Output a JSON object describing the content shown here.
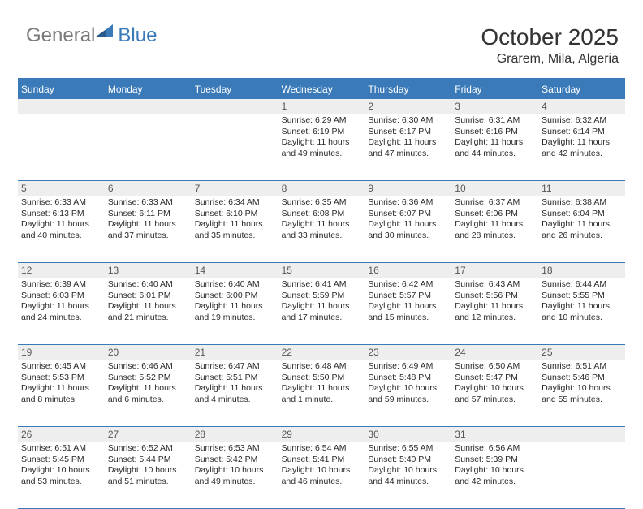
{
  "brand": {
    "part1": "General",
    "part2": "Blue"
  },
  "title": "October 2025",
  "location": "Grarem, Mila, Algeria",
  "colors": {
    "accent": "#3a7ab8",
    "header_text": "#ffffff",
    "daynum_bg": "#eeeeee",
    "body_text": "#282828",
    "logo_gray": "#7a7a7a"
  },
  "day_names": [
    "Sunday",
    "Monday",
    "Tuesday",
    "Wednesday",
    "Thursday",
    "Friday",
    "Saturday"
  ],
  "weeks": [
    [
      null,
      null,
      null,
      {
        "n": "1",
        "sr": "6:29 AM",
        "ss": "6:19 PM",
        "dh": "11",
        "dm": "49"
      },
      {
        "n": "2",
        "sr": "6:30 AM",
        "ss": "6:17 PM",
        "dh": "11",
        "dm": "47"
      },
      {
        "n": "3",
        "sr": "6:31 AM",
        "ss": "6:16 PM",
        "dh": "11",
        "dm": "44"
      },
      {
        "n": "4",
        "sr": "6:32 AM",
        "ss": "6:14 PM",
        "dh": "11",
        "dm": "42"
      }
    ],
    [
      {
        "n": "5",
        "sr": "6:33 AM",
        "ss": "6:13 PM",
        "dh": "11",
        "dm": "40"
      },
      {
        "n": "6",
        "sr": "6:33 AM",
        "ss": "6:11 PM",
        "dh": "11",
        "dm": "37"
      },
      {
        "n": "7",
        "sr": "6:34 AM",
        "ss": "6:10 PM",
        "dh": "11",
        "dm": "35"
      },
      {
        "n": "8",
        "sr": "6:35 AM",
        "ss": "6:08 PM",
        "dh": "11",
        "dm": "33"
      },
      {
        "n": "9",
        "sr": "6:36 AM",
        "ss": "6:07 PM",
        "dh": "11",
        "dm": "30"
      },
      {
        "n": "10",
        "sr": "6:37 AM",
        "ss": "6:06 PM",
        "dh": "11",
        "dm": "28"
      },
      {
        "n": "11",
        "sr": "6:38 AM",
        "ss": "6:04 PM",
        "dh": "11",
        "dm": "26"
      }
    ],
    [
      {
        "n": "12",
        "sr": "6:39 AM",
        "ss": "6:03 PM",
        "dh": "11",
        "dm": "24"
      },
      {
        "n": "13",
        "sr": "6:40 AM",
        "ss": "6:01 PM",
        "dh": "11",
        "dm": "21"
      },
      {
        "n": "14",
        "sr": "6:40 AM",
        "ss": "6:00 PM",
        "dh": "11",
        "dm": "19"
      },
      {
        "n": "15",
        "sr": "6:41 AM",
        "ss": "5:59 PM",
        "dh": "11",
        "dm": "17"
      },
      {
        "n": "16",
        "sr": "6:42 AM",
        "ss": "5:57 PM",
        "dh": "11",
        "dm": "15"
      },
      {
        "n": "17",
        "sr": "6:43 AM",
        "ss": "5:56 PM",
        "dh": "11",
        "dm": "12"
      },
      {
        "n": "18",
        "sr": "6:44 AM",
        "ss": "5:55 PM",
        "dh": "11",
        "dm": "10"
      }
    ],
    [
      {
        "n": "19",
        "sr": "6:45 AM",
        "ss": "5:53 PM",
        "dh": "11",
        "dm": "8"
      },
      {
        "n": "20",
        "sr": "6:46 AM",
        "ss": "5:52 PM",
        "dh": "11",
        "dm": "6"
      },
      {
        "n": "21",
        "sr": "6:47 AM",
        "ss": "5:51 PM",
        "dh": "11",
        "dm": "4"
      },
      {
        "n": "22",
        "sr": "6:48 AM",
        "ss": "5:50 PM",
        "dh": "11",
        "dm": "1"
      },
      {
        "n": "23",
        "sr": "6:49 AM",
        "ss": "5:48 PM",
        "dh": "10",
        "dm": "59"
      },
      {
        "n": "24",
        "sr": "6:50 AM",
        "ss": "5:47 PM",
        "dh": "10",
        "dm": "57"
      },
      {
        "n": "25",
        "sr": "6:51 AM",
        "ss": "5:46 PM",
        "dh": "10",
        "dm": "55"
      }
    ],
    [
      {
        "n": "26",
        "sr": "6:51 AM",
        "ss": "5:45 PM",
        "dh": "10",
        "dm": "53"
      },
      {
        "n": "27",
        "sr": "6:52 AM",
        "ss": "5:44 PM",
        "dh": "10",
        "dm": "51"
      },
      {
        "n": "28",
        "sr": "6:53 AM",
        "ss": "5:42 PM",
        "dh": "10",
        "dm": "49"
      },
      {
        "n": "29",
        "sr": "6:54 AM",
        "ss": "5:41 PM",
        "dh": "10",
        "dm": "46"
      },
      {
        "n": "30",
        "sr": "6:55 AM",
        "ss": "5:40 PM",
        "dh": "10",
        "dm": "44"
      },
      {
        "n": "31",
        "sr": "6:56 AM",
        "ss": "5:39 PM",
        "dh": "10",
        "dm": "42"
      },
      null
    ]
  ],
  "labels": {
    "sunrise": "Sunrise:",
    "sunset": "Sunset:",
    "daylight": "Daylight:",
    "hours": "hours",
    "and": "and",
    "minutes": "minutes.",
    "minute": "minute."
  }
}
